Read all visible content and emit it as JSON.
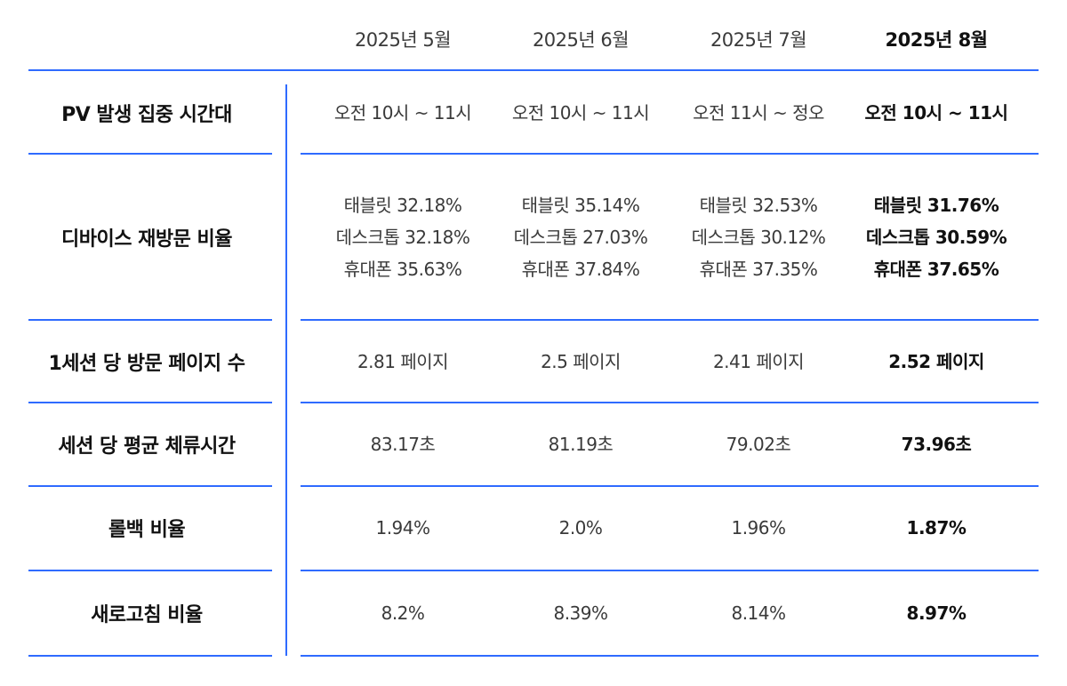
{
  "columns": [
    "2025년 5월",
    "2025년 6월",
    "2025년 7월",
    "2025년 8월"
  ],
  "rows": [
    {
      "label": "PV 발생 집중 시간대",
      "values": [
        [
          "오전 10시 ~ 11시"
        ],
        [
          "오전 10시 ~ 11시"
        ],
        [
          "오전 11시 ~ 정오"
        ],
        [
          "오전 10시 ~ 11시"
        ]
      ]
    },
    {
      "label": "디바이스 재방문 비율",
      "values": [
        [
          "태블릿 32.18%",
          "데스크톱 32.18%",
          "휴대폰 35.63%"
        ],
        [
          "태블릿 35.14%",
          "데스크톱 27.03%",
          "휴대폰 37.84%"
        ],
        [
          "태블릿 32.53%",
          "데스크톱 30.12%",
          "휴대폰 37.35%"
        ],
        [
          "태블릿 31.76%",
          "데스크톱 30.59%",
          "휴대폰 37.65%"
        ]
      ]
    },
    {
      "label": "1세션 당 방문 페이지 수",
      "values": [
        [
          "2.81 페이지"
        ],
        [
          "2.5 페이지"
        ],
        [
          "2.41 페이지"
        ],
        [
          "2.52 페이지"
        ]
      ]
    },
    {
      "label": "세션 당 평균 체류시간",
      "values": [
        [
          "83.17초"
        ],
        [
          "81.19초"
        ],
        [
          "79.02초"
        ],
        [
          "73.96초"
        ]
      ]
    },
    {
      "label": "롤백 비율",
      "values": [
        [
          "1.94%"
        ],
        [
          "2.0%"
        ],
        [
          "1.96%"
        ],
        [
          "1.87%"
        ]
      ]
    },
    {
      "label": "새로고침 비율",
      "values": [
        [
          "8.2%"
        ],
        [
          "8.39%"
        ],
        [
          "8.14%"
        ],
        [
          "8.97%"
        ]
      ]
    }
  ],
  "accent": "#2f6bff"
}
